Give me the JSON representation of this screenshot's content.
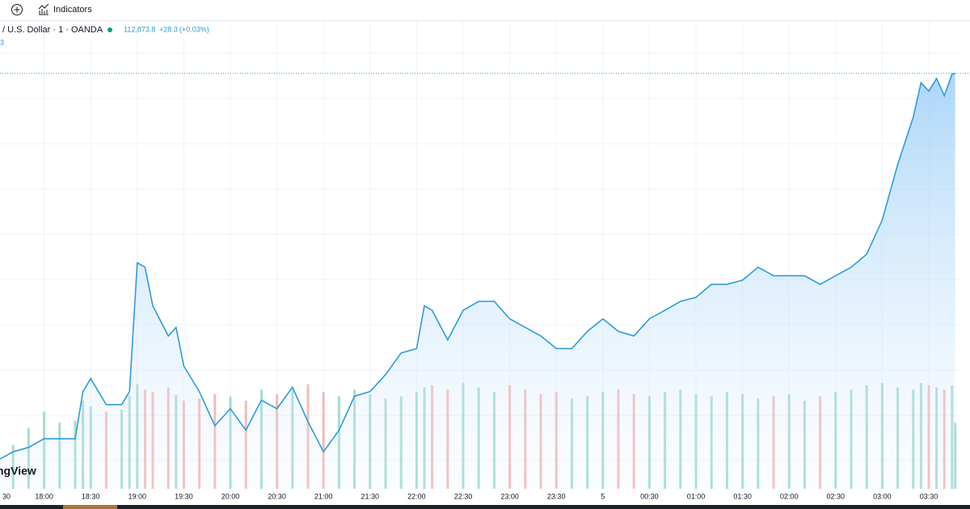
{
  "toolbar": {
    "indicators": "Indicators"
  },
  "header": {
    "symbol": "/ U.S. Dollar · 1 · OANDA",
    "price": "112,873.8",
    "change": "+28.3",
    "change_pct": "(+0.03%)",
    "sub": "3"
  },
  "watermark": "ngView",
  "chart_data": {
    "type": "area",
    "x": [
      0,
      10,
      20,
      30,
      40,
      50,
      55,
      60,
      70,
      80,
      85,
      90,
      95,
      100,
      110,
      115,
      120,
      130,
      140,
      150,
      160,
      170,
      180,
      190,
      200,
      210,
      220,
      230,
      240,
      250,
      260,
      270,
      275,
      280,
      290,
      300,
      310,
      320,
      330,
      340,
      350,
      360,
      370,
      380,
      390,
      400,
      410,
      420,
      430,
      440,
      450,
      460,
      470,
      480,
      490,
      500,
      510,
      520,
      530,
      540,
      550,
      560,
      570,
      580,
      590,
      595,
      600,
      605,
      610,
      615,
      617
    ],
    "series": [
      {
        "name": "price",
        "color": "#2f9bd9",
        "values": [
          111922,
          111943,
          111954,
          111975,
          111975,
          111975,
          112091,
          112123,
          112059,
          112059,
          112091,
          112408,
          112397,
          112302,
          112228,
          112249,
          112154,
          112091,
          112007,
          112049,
          111996,
          112070,
          112049,
          112102,
          112017,
          111943,
          111996,
          112080,
          112091,
          112133,
          112186,
          112197,
          112302,
          112291,
          112218,
          112291,
          112313,
          112313,
          112270,
          112249,
          112228,
          112197,
          112197,
          112239,
          112270,
          112239,
          112228,
          112270,
          112291,
          112313,
          112323,
          112355,
          112355,
          112365,
          112397,
          112376,
          112376,
          112376,
          112355,
          112376,
          112397,
          112429,
          112513,
          112650,
          112766,
          112851,
          112830,
          112861,
          112819,
          112872,
          112873.8
        ]
      },
      {
        "name": "volume",
        "axis": "y2",
        "up_color": "#8fd3c7",
        "down_color": "#f4a9a6",
        "values": [
          30,
          40,
          55,
          70,
          60,
          62,
          80,
          75,
          70,
          72,
          85,
          95,
          90,
          88,
          92,
          85,
          80,
          82,
          86,
          84,
          80,
          90,
          86,
          92,
          95,
          88,
          84,
          90,
          86,
          82,
          84,
          88,
          92,
          94,
          90,
          96,
          92,
          88,
          94,
          90,
          86,
          88,
          82,
          84,
          88,
          90,
          86,
          84,
          88,
          90,
          86,
          84,
          88,
          86,
          82,
          84,
          86,
          80,
          84,
          88,
          90,
          94,
          96,
          92,
          90,
          96,
          94,
          92,
          90,
          94,
          60
        ]
      }
    ],
    "ylim": [
      111852,
      112935
    ],
    "y2lim": [
      0,
      400
    ],
    "xlim": [
      0,
      620
    ],
    "xticks": [
      {
        "value": 0,
        "label": "30"
      },
      {
        "value": 30,
        "label": "18:00"
      },
      {
        "value": 60,
        "label": "18:30"
      },
      {
        "value": 90,
        "label": "19:00"
      },
      {
        "value": 120,
        "label": "19:30"
      },
      {
        "value": 150,
        "label": "20:00"
      },
      {
        "value": 180,
        "label": "20:30"
      },
      {
        "value": 210,
        "label": "21:00"
      },
      {
        "value": 240,
        "label": "21:30"
      },
      {
        "value": 270,
        "label": "22:00"
      },
      {
        "value": 300,
        "label": "22:30"
      },
      {
        "value": 330,
        "label": "23:00"
      },
      {
        "value": 360,
        "label": "23:30"
      },
      {
        "value": 390,
        "label": "5"
      },
      {
        "value": 420,
        "label": "00:30"
      },
      {
        "value": 450,
        "label": "01:00"
      },
      {
        "value": 480,
        "label": "01:30"
      },
      {
        "value": 510,
        "label": "02:00"
      },
      {
        "value": 540,
        "label": "02:30"
      },
      {
        "value": 570,
        "label": "03:00"
      },
      {
        "value": 600,
        "label": "03:30"
      }
    ],
    "grid": true
  }
}
